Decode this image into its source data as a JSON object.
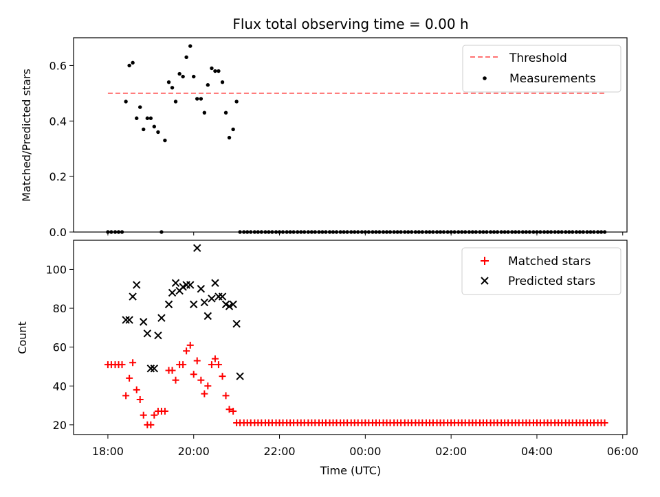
{
  "chart_data": [
    {
      "type": "scatter",
      "title": "Flux total observing time = 0.00 h",
      "xlabel": "",
      "ylabel": "Matched/Predicted stars",
      "ylim": [
        0,
        0.7
      ],
      "xlim": [
        17.2,
        30.1
      ],
      "x_ticks": [
        18,
        20,
        22,
        24,
        26,
        28,
        30
      ],
      "y_ticks": [
        0.0,
        0.2,
        0.4,
        0.6
      ],
      "y_tick_labels": [
        "0.0",
        "0.2",
        "0.4",
        "0.6"
      ],
      "grid": false,
      "legend_position": "top-right",
      "threshold": {
        "name": "Threshold",
        "value": 0.5,
        "x_range": [
          18.0,
          29.58
        ],
        "color": "#ff7070",
        "style": "dashed"
      },
      "series": [
        {
          "name": "Measurements",
          "color": "#000000",
          "marker": "dot",
          "x": [
            18.0,
            18.08,
            18.17,
            18.25,
            18.33,
            18.42,
            18.5,
            18.58,
            18.67,
            18.75,
            18.83,
            18.92,
            19.0,
            19.08,
            19.17,
            19.25,
            19.33,
            19.42,
            19.5,
            19.58,
            19.67,
            19.75,
            19.83,
            19.92,
            20.0,
            20.08,
            20.17,
            20.25,
            20.33,
            20.42,
            20.5,
            20.58,
            20.67,
            20.75,
            20.83,
            20.92,
            21.0,
            21.08,
            21.17,
            21.25,
            21.33,
            21.42,
            21.5,
            21.58,
            21.67,
            21.75,
            21.83,
            21.92,
            22.0,
            22.08,
            22.17,
            22.25,
            22.33,
            22.42,
            22.5,
            22.58,
            22.67,
            22.75,
            22.83,
            22.92,
            23.0,
            23.08,
            23.17,
            23.25,
            23.33,
            23.42,
            23.5,
            23.58,
            23.67,
            23.75,
            23.83,
            23.92,
            24.0,
            24.08,
            24.17,
            24.25,
            24.33,
            24.42,
            24.5,
            24.58,
            24.67,
            24.75,
            24.83,
            24.92,
            25.0,
            25.08,
            25.17,
            25.25,
            25.33,
            25.42,
            25.5,
            25.58,
            25.67,
            25.75,
            25.83,
            25.92,
            26.0,
            26.08,
            26.17,
            26.25,
            26.33,
            26.42,
            26.5,
            26.58,
            26.67,
            26.75,
            26.83,
            26.92,
            27.0,
            27.08,
            27.17,
            27.25,
            27.33,
            27.42,
            27.5,
            27.58,
            27.67,
            27.75,
            27.83,
            27.92,
            28.0,
            28.08,
            28.17,
            28.25,
            28.33,
            28.42,
            28.5,
            28.58,
            28.67,
            28.75,
            28.83,
            28.92,
            29.0,
            29.08,
            29.17,
            29.25,
            29.33,
            29.42,
            29.5,
            29.58
          ],
          "y": [
            0,
            0,
            0,
            0,
            0,
            0.47,
            0.6,
            0.61,
            0.41,
            0.45,
            0.37,
            0.41,
            0.41,
            0.38,
            0.36,
            0,
            0.33,
            0.54,
            0.52,
            0.47,
            0.57,
            0.56,
            0.63,
            0.67,
            0.56,
            0.48,
            0.48,
            0.43,
            0.53,
            0.59,
            0.58,
            0.58,
            0.54,
            0.43,
            0.34,
            0.37,
            0.47,
            0,
            0,
            0,
            0,
            0,
            0,
            0,
            0,
            0,
            0,
            0,
            0,
            0,
            0,
            0,
            0,
            0,
            0,
            0,
            0,
            0,
            0,
            0,
            0,
            0,
            0,
            0,
            0,
            0,
            0,
            0,
            0,
            0,
            0,
            0,
            0,
            0,
            0,
            0,
            0,
            0,
            0,
            0,
            0,
            0,
            0,
            0,
            0,
            0,
            0,
            0,
            0,
            0,
            0,
            0,
            0,
            0,
            0,
            0,
            0,
            0,
            0,
            0,
            0,
            0,
            0,
            0,
            0,
            0,
            0,
            0,
            0,
            0,
            0,
            0,
            0,
            0,
            0,
            0,
            0,
            0,
            0,
            0,
            0,
            0,
            0,
            0,
            0,
            0,
            0,
            0,
            0,
            0,
            0,
            0,
            0,
            0,
            0,
            0,
            0,
            0,
            0,
            0
          ]
        }
      ]
    },
    {
      "type": "scatter",
      "title": "",
      "xlabel": "Time (UTC)",
      "ylabel": "Count",
      "ylim": [
        15,
        115
      ],
      "xlim": [
        17.2,
        30.1
      ],
      "x_ticks": [
        18,
        20,
        22,
        24,
        26,
        28,
        30
      ],
      "x_tick_labels": [
        "18:00",
        "20:00",
        "22:00",
        "00:00",
        "02:00",
        "04:00",
        "06:00"
      ],
      "y_ticks": [
        20,
        40,
        60,
        80,
        100
      ],
      "y_tick_labels": [
        "20",
        "40",
        "60",
        "80",
        "100"
      ],
      "grid": false,
      "legend_position": "top-right",
      "series": [
        {
          "name": "Matched stars",
          "color": "#ff0000",
          "marker": "plus",
          "x": [
            18.0,
            18.08,
            18.17,
            18.25,
            18.33,
            18.42,
            18.5,
            18.58,
            18.67,
            18.75,
            18.83,
            18.92,
            19.0,
            19.08,
            19.17,
            19.25,
            19.33,
            19.42,
            19.5,
            19.58,
            19.67,
            19.75,
            19.83,
            19.92,
            20.0,
            20.08,
            20.17,
            20.25,
            20.33,
            20.42,
            20.5,
            20.58,
            20.67,
            20.75,
            20.83,
            20.92,
            21.0,
            21.08,
            21.17,
            21.25,
            21.33,
            21.42,
            21.5,
            21.58,
            21.67,
            21.75,
            21.83,
            21.92,
            22.0,
            22.08,
            22.17,
            22.25,
            22.33,
            22.42,
            22.5,
            22.58,
            22.67,
            22.75,
            22.83,
            22.92,
            23.0,
            23.08,
            23.17,
            23.25,
            23.33,
            23.42,
            23.5,
            23.58,
            23.67,
            23.75,
            23.83,
            23.92,
            24.0,
            24.08,
            24.17,
            24.25,
            24.33,
            24.42,
            24.5,
            24.58,
            24.67,
            24.75,
            24.83,
            24.92,
            25.0,
            25.08,
            25.17,
            25.25,
            25.33,
            25.42,
            25.5,
            25.58,
            25.67,
            25.75,
            25.83,
            25.92,
            26.0,
            26.08,
            26.17,
            26.25,
            26.33,
            26.42,
            26.5,
            26.58,
            26.67,
            26.75,
            26.83,
            26.92,
            27.0,
            27.08,
            27.17,
            27.25,
            27.33,
            27.42,
            27.5,
            27.58,
            27.67,
            27.75,
            27.83,
            27.92,
            28.0,
            28.08,
            28.17,
            28.25,
            28.33,
            28.42,
            28.5,
            28.58,
            28.67,
            28.75,
            28.83,
            28.92,
            29.0,
            29.08,
            29.17,
            29.25,
            29.33,
            29.42,
            29.5,
            29.58
          ],
          "y": [
            51,
            51,
            51,
            51,
            51,
            35,
            44,
            52,
            38,
            33,
            25,
            20,
            20,
            25,
            27,
            27,
            27,
            48,
            48,
            43,
            51,
            51,
            58,
            61,
            46,
            53,
            43,
            36,
            40,
            51,
            54,
            51,
            45,
            35,
            28,
            27,
            21,
            21,
            21,
            21,
            21,
            21,
            21,
            21,
            21,
            21,
            21,
            21,
            21,
            21,
            21,
            21,
            21,
            21,
            21,
            21,
            21,
            21,
            21,
            21,
            21,
            21,
            21,
            21,
            21,
            21,
            21,
            21,
            21,
            21,
            21,
            21,
            21,
            21,
            21,
            21,
            21,
            21,
            21,
            21,
            21,
            21,
            21,
            21,
            21,
            21,
            21,
            21,
            21,
            21,
            21,
            21,
            21,
            21,
            21,
            21,
            21,
            21,
            21,
            21,
            21,
            21,
            21,
            21,
            21,
            21,
            21,
            21,
            21,
            21,
            21,
            21,
            21,
            21,
            21,
            21,
            21,
            21,
            21,
            21,
            21,
            21,
            21,
            21,
            21,
            21,
            21,
            21,
            21,
            21,
            21,
            21,
            21,
            21,
            21,
            21,
            21,
            21,
            21,
            21
          ]
        },
        {
          "name": "Predicted stars",
          "color": "#000000",
          "marker": "x",
          "x": [
            18.42,
            18.5,
            18.58,
            18.67,
            18.83,
            18.92,
            19.0,
            19.08,
            19.17,
            19.25,
            19.42,
            19.5,
            19.58,
            19.67,
            19.75,
            19.83,
            19.92,
            20.0,
            20.08,
            20.17,
            20.25,
            20.33,
            20.42,
            20.5,
            20.58,
            20.67,
            20.75,
            20.83,
            20.92,
            21.0,
            21.08
          ],
          "y": [
            74,
            74,
            86,
            92,
            73,
            67,
            49,
            49,
            66,
            75,
            82,
            88,
            93,
            89,
            91,
            92,
            92,
            82,
            111,
            90,
            83,
            76,
            85,
            93,
            86,
            86,
            82,
            81,
            82,
            72,
            45
          ]
        }
      ]
    }
  ]
}
